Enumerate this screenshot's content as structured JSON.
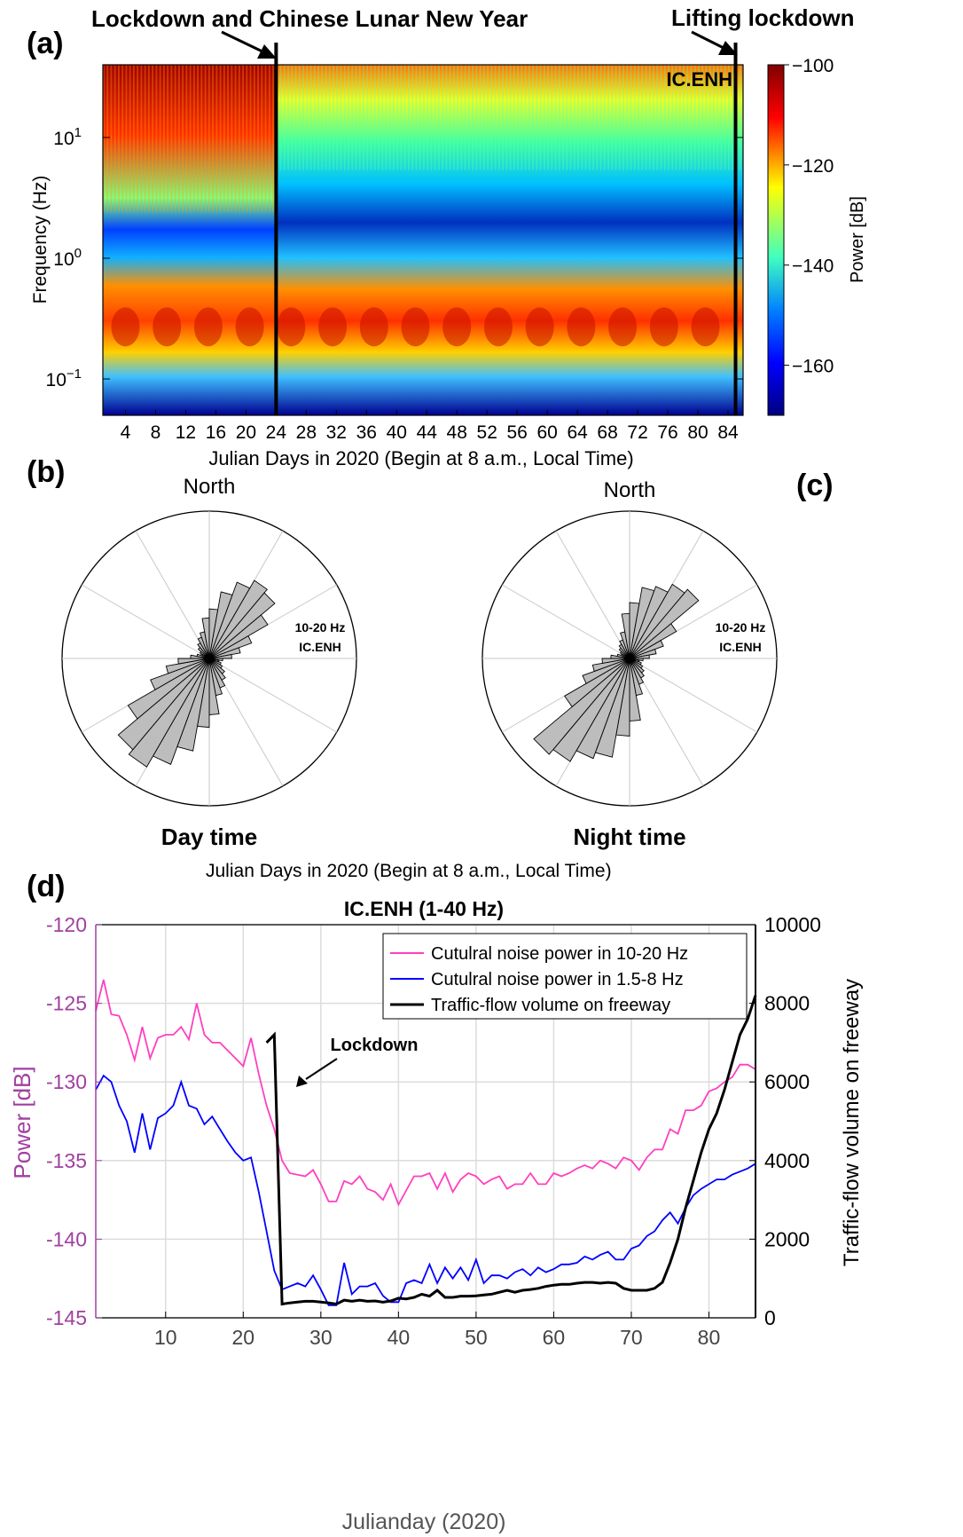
{
  "panels": {
    "a": "(a)",
    "b": "(b)",
    "c": "(c)",
    "d": "(d)"
  },
  "annotations": {
    "lockdown_cny": "Lockdown and Chinese Lunar New Year",
    "lifting": "Lifting lockdown",
    "station_a": "IC.ENH",
    "lockdown_d": "Lockdown"
  },
  "chart_data": [
    {
      "type": "heatmap",
      "station": "IC.ENH",
      "xlabel": "Julian Days in 2020 (Begin at 8 a.m., Local Time)",
      "ylabel": "Frequency (Hz)",
      "x_ticks": [
        "4",
        "8",
        "12",
        "16",
        "20",
        "24",
        "28",
        "32",
        "36",
        "40",
        "44",
        "48",
        "52",
        "56",
        "60",
        "64",
        "68",
        "72",
        "76",
        "80",
        "84"
      ],
      "y_ticks": [
        {
          "base": "10",
          "exp": "1"
        },
        {
          "base": "10",
          "exp": "0"
        },
        {
          "base": "10",
          "exp": "−1"
        }
      ],
      "xlim": [
        1,
        86
      ],
      "y_scale": "log",
      "ylim": [
        0.05,
        40
      ],
      "colorbar": {
        "label": "Power [dB]",
        "ticks": [
          "−100",
          "−120",
          "−140",
          "−160"
        ],
        "range": [
          -170,
          -100
        ]
      },
      "markers_day": [
        24,
        85
      ],
      "colors": {
        "high": "#800000",
        "mid": "#ffff00",
        "low": "#000080"
      }
    },
    {
      "type": "rose",
      "title": "Day time",
      "north_label": "North",
      "box_label": [
        "10-20 Hz",
        "IC.ENH"
      ],
      "bin_deg": 10,
      "relative_counts": [
        0.02,
        0.02,
        0.02,
        0.02,
        0.03,
        0.02,
        0.03,
        0.02,
        0.05,
        0.05,
        0.08,
        0.1,
        0.12,
        0.16,
        0.2,
        0.25,
        0.3,
        0.45,
        0.55,
        0.75,
        0.9,
        1.0,
        0.95,
        0.75,
        0.5,
        0.35,
        0.25,
        0.15,
        0.1,
        0.06,
        0.04,
        0.02,
        0.03,
        0.02,
        0.03,
        0.02
      ]
    },
    {
      "type": "rose",
      "title": "Night time",
      "north_label": "North",
      "box_label": [
        "10-20 Hz",
        "IC.ENH"
      ],
      "bin_deg": 10,
      "relative_counts": [
        0.02,
        0.02,
        0.02,
        0.02,
        0.03,
        0.02,
        0.03,
        0.02,
        0.05,
        0.05,
        0.08,
        0.1,
        0.12,
        0.15,
        0.18,
        0.22,
        0.3,
        0.5,
        0.62,
        0.8,
        0.85,
        0.95,
        1.0,
        0.6,
        0.4,
        0.3,
        0.22,
        0.15,
        0.1,
        0.06,
        0.04,
        0.02,
        0.03,
        0.02,
        0.03,
        0.02
      ]
    },
    {
      "type": "line",
      "title": "IC.ENH (1-40 Hz)",
      "above_label": "Julian Days in 2020 (Begin at 8 a.m., Local Time)",
      "xlabel": "Julianday (2020)",
      "ylabel": "Power [dB]",
      "ylabel_right": "Traffic-flow volume on freeway",
      "xlim": [
        1,
        86
      ],
      "ylim": [
        -145,
        -120
      ],
      "ylim_right": [
        0,
        10000
      ],
      "x_ticks": [
        10,
        20,
        30,
        40,
        50,
        60,
        70,
        80
      ],
      "y_ticks": [
        -120,
        -125,
        -130,
        -135,
        -140,
        -145
      ],
      "y_ticks_right": [
        10000,
        8000,
        6000,
        4000,
        2000,
        0
      ],
      "grid": true,
      "legend_position": "top-right",
      "series": [
        {
          "name": "Cutulral noise power in 10-20 Hz",
          "color": "#ff3fbf",
          "axis": "left",
          "x": [
            1,
            2,
            3,
            4,
            5,
            6,
            7,
            8,
            9,
            10,
            11,
            12,
            13,
            14,
            15,
            16,
            17,
            18,
            19,
            20,
            21,
            22,
            23,
            24,
            25,
            26,
            27,
            28,
            29,
            30,
            31,
            32,
            33,
            34,
            35,
            36,
            37,
            38,
            39,
            40,
            41,
            42,
            43,
            44,
            45,
            46,
            47,
            48,
            49,
            50,
            51,
            52,
            53,
            54,
            55,
            56,
            57,
            58,
            59,
            60,
            61,
            62,
            63,
            64,
            65,
            66,
            67,
            68,
            69,
            70,
            71,
            72,
            73,
            74,
            75,
            76,
            77,
            78,
            79,
            80,
            81,
            82,
            83,
            84,
            85,
            86
          ],
          "y": [
            -125.5,
            -123.5,
            -125.7,
            -125.8,
            -127,
            -128.6,
            -126.5,
            -128.5,
            -127.2,
            -127,
            -127,
            -126.5,
            -127.3,
            -125,
            -127,
            -127.5,
            -127.5,
            -128,
            -128.5,
            -129,
            -127.2,
            -129.5,
            -131.5,
            -133,
            -135,
            -135.8,
            -135.9,
            -136,
            -135.6,
            -136.5,
            -137.6,
            -137.6,
            -136.3,
            -136.5,
            -136,
            -136.8,
            -137,
            -137.5,
            -136.5,
            -137.8,
            -136.9,
            -136,
            -136,
            -135.8,
            -136.8,
            -135.8,
            -137,
            -136.2,
            -135.8,
            -136,
            -136.5,
            -136.2,
            -136,
            -136.8,
            -136.5,
            -136.5,
            -135.8,
            -136.5,
            -136.5,
            -135.8,
            -136,
            -135.8,
            -135.5,
            -135.3,
            -135.5,
            -135,
            -135.2,
            -135.5,
            -134.8,
            -135,
            -135.6,
            -134.8,
            -134.3,
            -134.3,
            -133,
            -133.3,
            -131.8,
            -131.8,
            -131.5,
            -130.6,
            -130.4,
            -130,
            -129.7,
            -128.9,
            -128.9,
            -129.2
          ]
        },
        {
          "name": "Cutulral noise power in 1.5-8 Hz",
          "color": "#0000ff",
          "axis": "left",
          "x": [
            1,
            2,
            3,
            4,
            5,
            6,
            7,
            8,
            9,
            10,
            11,
            12,
            13,
            14,
            15,
            16,
            17,
            18,
            19,
            20,
            21,
            22,
            23,
            24,
            25,
            26,
            27,
            28,
            29,
            30,
            31,
            32,
            33,
            34,
            35,
            36,
            37,
            38,
            39,
            40,
            41,
            42,
            43,
            44,
            45,
            46,
            47,
            48,
            49,
            50,
            51,
            52,
            53,
            54,
            55,
            56,
            57,
            58,
            59,
            60,
            61,
            62,
            63,
            64,
            65,
            66,
            67,
            68,
            69,
            70,
            71,
            72,
            73,
            74,
            75,
            76,
            77,
            78,
            79,
            80,
            81,
            82,
            83,
            84,
            85,
            86
          ],
          "y": [
            -130.5,
            -129.6,
            -130,
            -131.5,
            -132.5,
            -134.5,
            -132,
            -134.3,
            -132.3,
            -132,
            -131.5,
            -130,
            -131.5,
            -131.7,
            -132.7,
            -132.2,
            -133,
            -133.8,
            -134.5,
            -135,
            -134.8,
            -137,
            -139.5,
            -142,
            -143.2,
            -143,
            -142.8,
            -143,
            -142.3,
            -143.2,
            -144.2,
            -144.2,
            -141.5,
            -143.5,
            -143,
            -143,
            -142.8,
            -143.6,
            -144,
            -144,
            -142.8,
            -142.6,
            -142.8,
            -141.6,
            -142.8,
            -141.8,
            -142.5,
            -141.8,
            -142.6,
            -141.3,
            -142.8,
            -142.3,
            -142.3,
            -142.5,
            -142.1,
            -141.9,
            -142.3,
            -141.8,
            -142.1,
            -141.9,
            -141.6,
            -141.6,
            -141.5,
            -141.1,
            -141.3,
            -141,
            -140.8,
            -141.3,
            -141.3,
            -140.6,
            -140.4,
            -139.8,
            -139.5,
            -138.8,
            -138.3,
            -139,
            -138,
            -137.2,
            -136.8,
            -136.5,
            -136.2,
            -136.2,
            -135.9,
            -135.7,
            -135.5,
            -135.2
          ]
        },
        {
          "name": "Traffic-flow volume on freeway",
          "color": "#000000",
          "axis": "right",
          "x": [
            23,
            24,
            25,
            26,
            27,
            28,
            29,
            30,
            31,
            32,
            33,
            34,
            35,
            36,
            37,
            38,
            39,
            40,
            41,
            42,
            43,
            44,
            45,
            46,
            47,
            48,
            49,
            50,
            51,
            52,
            53,
            54,
            55,
            56,
            57,
            58,
            59,
            60,
            61,
            62,
            63,
            64,
            65,
            66,
            67,
            68,
            69,
            70,
            71,
            72,
            73,
            74,
            75,
            76,
            77,
            78,
            79,
            80,
            81,
            82,
            83,
            84,
            85,
            86
          ],
          "y": [
            7000,
            7200,
            350,
            380,
            400,
            420,
            420,
            400,
            380,
            350,
            450,
            420,
            450,
            420,
            430,
            400,
            430,
            500,
            480,
            520,
            600,
            550,
            700,
            520,
            520,
            550,
            550,
            560,
            580,
            600,
            650,
            700,
            650,
            700,
            720,
            750,
            800,
            830,
            850,
            850,
            880,
            900,
            900,
            880,
            900,
            880,
            750,
            700,
            700,
            700,
            750,
            900,
            1400,
            2000,
            2800,
            3500,
            4200,
            4800,
            5200,
            5800,
            6500,
            7200,
            7600,
            8200
          ]
        }
      ]
    }
  ]
}
